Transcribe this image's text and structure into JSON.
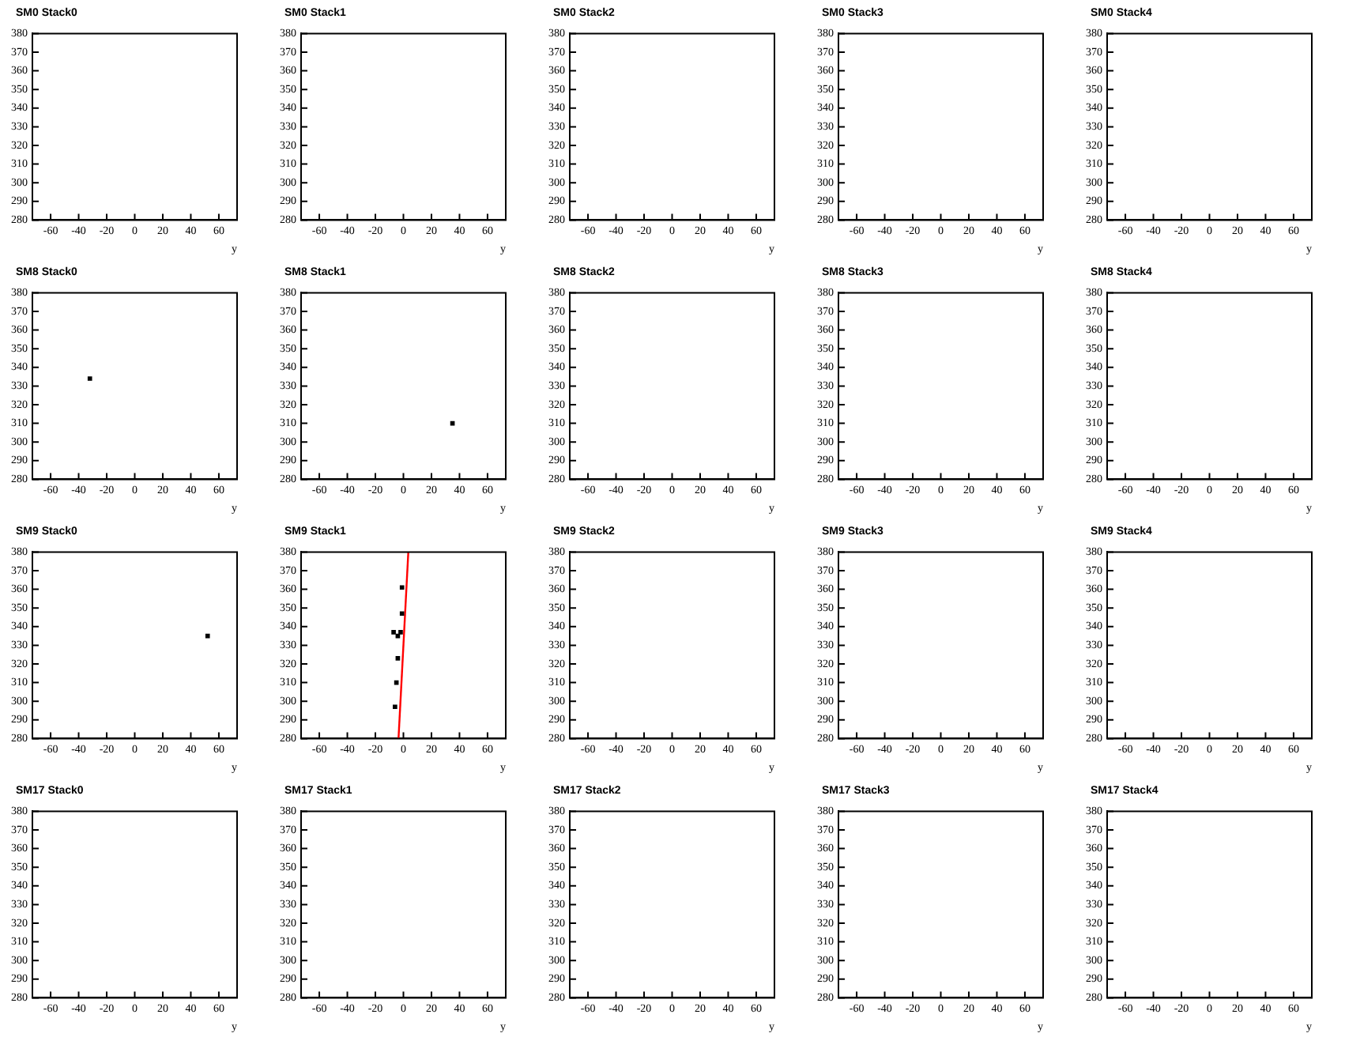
{
  "chart_data": [
    {
      "type": "scatter",
      "title": "SM0 Stack0",
      "xlabel": "y",
      "xlim": [
        -73,
        73
      ],
      "xticks": [
        -60,
        -40,
        -20,
        0,
        20,
        40,
        60
      ],
      "ylim": [
        280,
        380
      ],
      "yticks": [
        280,
        290,
        300,
        310,
        320,
        330,
        340,
        350,
        360,
        370,
        380
      ],
      "grid": false
    },
    {
      "type": "scatter",
      "title": "SM0 Stack1",
      "xlabel": "y",
      "xlim": [
        -73,
        73
      ],
      "xticks": [
        -60,
        -40,
        -20,
        0,
        20,
        40,
        60
      ],
      "ylim": [
        280,
        380
      ],
      "yticks": [
        280,
        290,
        300,
        310,
        320,
        330,
        340,
        350,
        360,
        370,
        380
      ],
      "grid": false
    },
    {
      "type": "scatter",
      "title": "SM0 Stack2",
      "xlabel": "y",
      "xlim": [
        -73,
        73
      ],
      "xticks": [
        -60,
        -40,
        -20,
        0,
        20,
        40,
        60
      ],
      "ylim": [
        280,
        380
      ],
      "yticks": [
        280,
        290,
        300,
        310,
        320,
        330,
        340,
        350,
        360,
        370,
        380
      ],
      "grid": false
    },
    {
      "type": "scatter",
      "title": "SM0 Stack3",
      "xlabel": "y",
      "xlim": [
        -73,
        73
      ],
      "xticks": [
        -60,
        -40,
        -20,
        0,
        20,
        40,
        60
      ],
      "ylim": [
        280,
        380
      ],
      "yticks": [
        280,
        290,
        300,
        310,
        320,
        330,
        340,
        350,
        360,
        370,
        380
      ],
      "grid": false
    },
    {
      "type": "scatter",
      "title": "SM0 Stack4",
      "xlabel": "y",
      "xlim": [
        -73,
        73
      ],
      "xticks": [
        -60,
        -40,
        -20,
        0,
        20,
        40,
        60
      ],
      "ylim": [
        280,
        380
      ],
      "yticks": [
        280,
        290,
        300,
        310,
        320,
        330,
        340,
        350,
        360,
        370,
        380
      ],
      "grid": false
    },
    {
      "type": "scatter",
      "title": "SM8 Stack0",
      "xlabel": "y",
      "xlim": [
        -73,
        73
      ],
      "xticks": [
        -60,
        -40,
        -20,
        0,
        20,
        40,
        60
      ],
      "ylim": [
        280,
        380
      ],
      "yticks": [
        280,
        290,
        300,
        310,
        320,
        330,
        340,
        350,
        360,
        370,
        380
      ],
      "grid": false,
      "marker": "square",
      "series": [
        {
          "color": "#000000",
          "x": [
            -32
          ],
          "values": [
            334
          ]
        }
      ]
    },
    {
      "type": "scatter",
      "title": "SM8 Stack1",
      "xlabel": "y",
      "xlim": [
        -73,
        73
      ],
      "xticks": [
        -60,
        -40,
        -20,
        0,
        20,
        40,
        60
      ],
      "ylim": [
        280,
        380
      ],
      "yticks": [
        280,
        290,
        300,
        310,
        320,
        330,
        340,
        350,
        360,
        370,
        380
      ],
      "grid": false,
      "marker": "square",
      "series": [
        {
          "color": "#000000",
          "x": [
            35
          ],
          "values": [
            310
          ]
        }
      ]
    },
    {
      "type": "scatter",
      "title": "SM8 Stack2",
      "xlabel": "y",
      "xlim": [
        -73,
        73
      ],
      "xticks": [
        -60,
        -40,
        -20,
        0,
        20,
        40,
        60
      ],
      "ylim": [
        280,
        380
      ],
      "yticks": [
        280,
        290,
        300,
        310,
        320,
        330,
        340,
        350,
        360,
        370,
        380
      ],
      "grid": false
    },
    {
      "type": "scatter",
      "title": "SM8 Stack3",
      "xlabel": "y",
      "xlim": [
        -73,
        73
      ],
      "xticks": [
        -60,
        -40,
        -20,
        0,
        20,
        40,
        60
      ],
      "ylim": [
        280,
        380
      ],
      "yticks": [
        280,
        290,
        300,
        310,
        320,
        330,
        340,
        350,
        360,
        370,
        380
      ],
      "grid": false
    },
    {
      "type": "scatter",
      "title": "SM8 Stack4",
      "xlabel": "y",
      "xlim": [
        -73,
        73
      ],
      "xticks": [
        -60,
        -40,
        -20,
        0,
        20,
        40,
        60
      ],
      "ylim": [
        280,
        380
      ],
      "yticks": [
        280,
        290,
        300,
        310,
        320,
        330,
        340,
        350,
        360,
        370,
        380
      ],
      "grid": false
    },
    {
      "type": "scatter",
      "title": "SM9 Stack0",
      "xlabel": "y",
      "xlim": [
        -73,
        73
      ],
      "xticks": [
        -60,
        -40,
        -20,
        0,
        20,
        40,
        60
      ],
      "ylim": [
        280,
        380
      ],
      "yticks": [
        280,
        290,
        300,
        310,
        320,
        330,
        340,
        350,
        360,
        370,
        380
      ],
      "grid": false,
      "marker": "square",
      "series": [
        {
          "color": "#000000",
          "x": [
            52
          ],
          "values": [
            335
          ]
        }
      ]
    },
    {
      "type": "scatter",
      "title": "SM9 Stack1",
      "xlabel": "y",
      "xlim": [
        -73,
        73
      ],
      "xticks": [
        -60,
        -40,
        -20,
        0,
        20,
        40,
        60
      ],
      "ylim": [
        280,
        380
      ],
      "yticks": [
        280,
        290,
        300,
        310,
        320,
        330,
        340,
        350,
        360,
        370,
        380
      ],
      "grid": false,
      "marker": "square",
      "series": [
        {
          "color": "#000000",
          "x": [
            -1,
            -1,
            -7,
            -4,
            -2,
            -4,
            -5,
            -6
          ],
          "values": [
            361,
            347,
            337,
            335,
            337,
            323,
            310,
            297
          ]
        },
        {
          "type": "line",
          "color": "#ff0000",
          "marker": "none",
          "x": [
            -3.5,
            3.5
          ],
          "values": [
            280,
            380
          ]
        }
      ]
    },
    {
      "type": "scatter",
      "title": "SM9 Stack2",
      "xlabel": "y",
      "xlim": [
        -73,
        73
      ],
      "xticks": [
        -60,
        -40,
        -20,
        0,
        20,
        40,
        60
      ],
      "ylim": [
        280,
        380
      ],
      "yticks": [
        280,
        290,
        300,
        310,
        320,
        330,
        340,
        350,
        360,
        370,
        380
      ],
      "grid": false
    },
    {
      "type": "scatter",
      "title": "SM9 Stack3",
      "xlabel": "y",
      "xlim": [
        -73,
        73
      ],
      "xticks": [
        -60,
        -40,
        -20,
        0,
        20,
        40,
        60
      ],
      "ylim": [
        280,
        380
      ],
      "yticks": [
        280,
        290,
        300,
        310,
        320,
        330,
        340,
        350,
        360,
        370,
        380
      ],
      "grid": false
    },
    {
      "type": "scatter",
      "title": "SM9 Stack4",
      "xlabel": "y",
      "xlim": [
        -73,
        73
      ],
      "xticks": [
        -60,
        -40,
        -20,
        0,
        20,
        40,
        60
      ],
      "ylim": [
        280,
        380
      ],
      "yticks": [
        280,
        290,
        300,
        310,
        320,
        330,
        340,
        350,
        360,
        370,
        380
      ],
      "grid": false
    },
    {
      "type": "scatter",
      "title": "SM17 Stack0",
      "xlabel": "y",
      "xlim": [
        -73,
        73
      ],
      "xticks": [
        -60,
        -40,
        -20,
        0,
        20,
        40,
        60
      ],
      "ylim": [
        280,
        380
      ],
      "yticks": [
        280,
        290,
        300,
        310,
        320,
        330,
        340,
        350,
        360,
        370,
        380
      ],
      "grid": false
    },
    {
      "type": "scatter",
      "title": "SM17 Stack1",
      "xlabel": "y",
      "xlim": [
        -73,
        73
      ],
      "xticks": [
        -60,
        -40,
        -20,
        0,
        20,
        40,
        60
      ],
      "ylim": [
        280,
        380
      ],
      "yticks": [
        280,
        290,
        300,
        310,
        320,
        330,
        340,
        350,
        360,
        370,
        380
      ],
      "grid": false
    },
    {
      "type": "scatter",
      "title": "SM17 Stack2",
      "xlabel": "y",
      "xlim": [
        -73,
        73
      ],
      "xticks": [
        -60,
        -40,
        -20,
        0,
        20,
        40,
        60
      ],
      "ylim": [
        280,
        380
      ],
      "yticks": [
        280,
        290,
        300,
        310,
        320,
        330,
        340,
        350,
        360,
        370,
        380
      ],
      "grid": false
    },
    {
      "type": "scatter",
      "title": "SM17 Stack3",
      "xlabel": "y",
      "xlim": [
        -73,
        73
      ],
      "xticks": [
        -60,
        -40,
        -20,
        0,
        20,
        40,
        60
      ],
      "ylim": [
        280,
        380
      ],
      "yticks": [
        280,
        290,
        300,
        310,
        320,
        330,
        340,
        350,
        360,
        370,
        380
      ],
      "grid": false
    },
    {
      "type": "scatter",
      "title": "SM17 Stack4",
      "xlabel": "y",
      "xlim": [
        -73,
        73
      ],
      "xticks": [
        -60,
        -40,
        -20,
        0,
        20,
        40,
        60
      ],
      "ylim": [
        280,
        380
      ],
      "yticks": [
        280,
        290,
        300,
        310,
        320,
        330,
        340,
        350,
        360,
        370,
        380
      ],
      "grid": false
    }
  ]
}
